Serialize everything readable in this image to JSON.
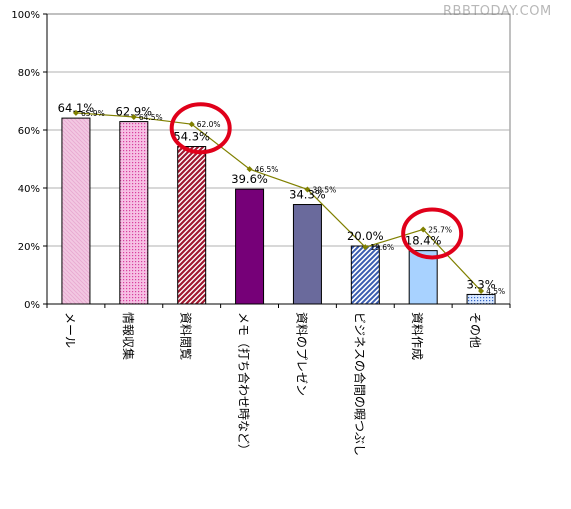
{
  "watermark": "RBBTODAY.COM",
  "colors": {
    "line": "#808000",
    "circle": "#e0001a"
  },
  "chart_data": {
    "type": "bar",
    "title": "",
    "xlabel": "",
    "ylabel": "",
    "ylim": [
      0,
      100
    ],
    "yticks": [
      0,
      20,
      40,
      60,
      80,
      100
    ],
    "ytick_labels": [
      "0%",
      "20%",
      "40%",
      "60%",
      "80%",
      "100%"
    ],
    "grid": true,
    "legend": "none",
    "categories": [
      "メール",
      "情報収集",
      "資料閲覧",
      "メモ（打ち合わせ時など）",
      "資料のプレゼン",
      "ビジネスの合間の暇つぶし",
      "資料作成",
      "その他"
    ],
    "series": [
      {
        "kind": "bar",
        "values": [
          64.1,
          62.9,
          54.3,
          39.6,
          34.3,
          20.0,
          18.4,
          3.3
        ],
        "labels": [
          "64.1%",
          "62.9%",
          "54.3%",
          "39.6%",
          "34.3%",
          "20.0%",
          "18.4%",
          "3.3%"
        ]
      },
      {
        "kind": "line",
        "values": [
          65.9,
          64.5,
          62.0,
          46.5,
          39.5,
          19.6,
          25.7,
          4.5
        ],
        "labels": [
          "65.9%",
          "64.5%",
          "62.0%",
          "46.5%",
          "39.5%",
          "19.6%",
          "25.7%",
          "4.5%"
        ]
      }
    ],
    "highlighted_categories": [
      "資料閲覧",
      "資料作成"
    ]
  }
}
